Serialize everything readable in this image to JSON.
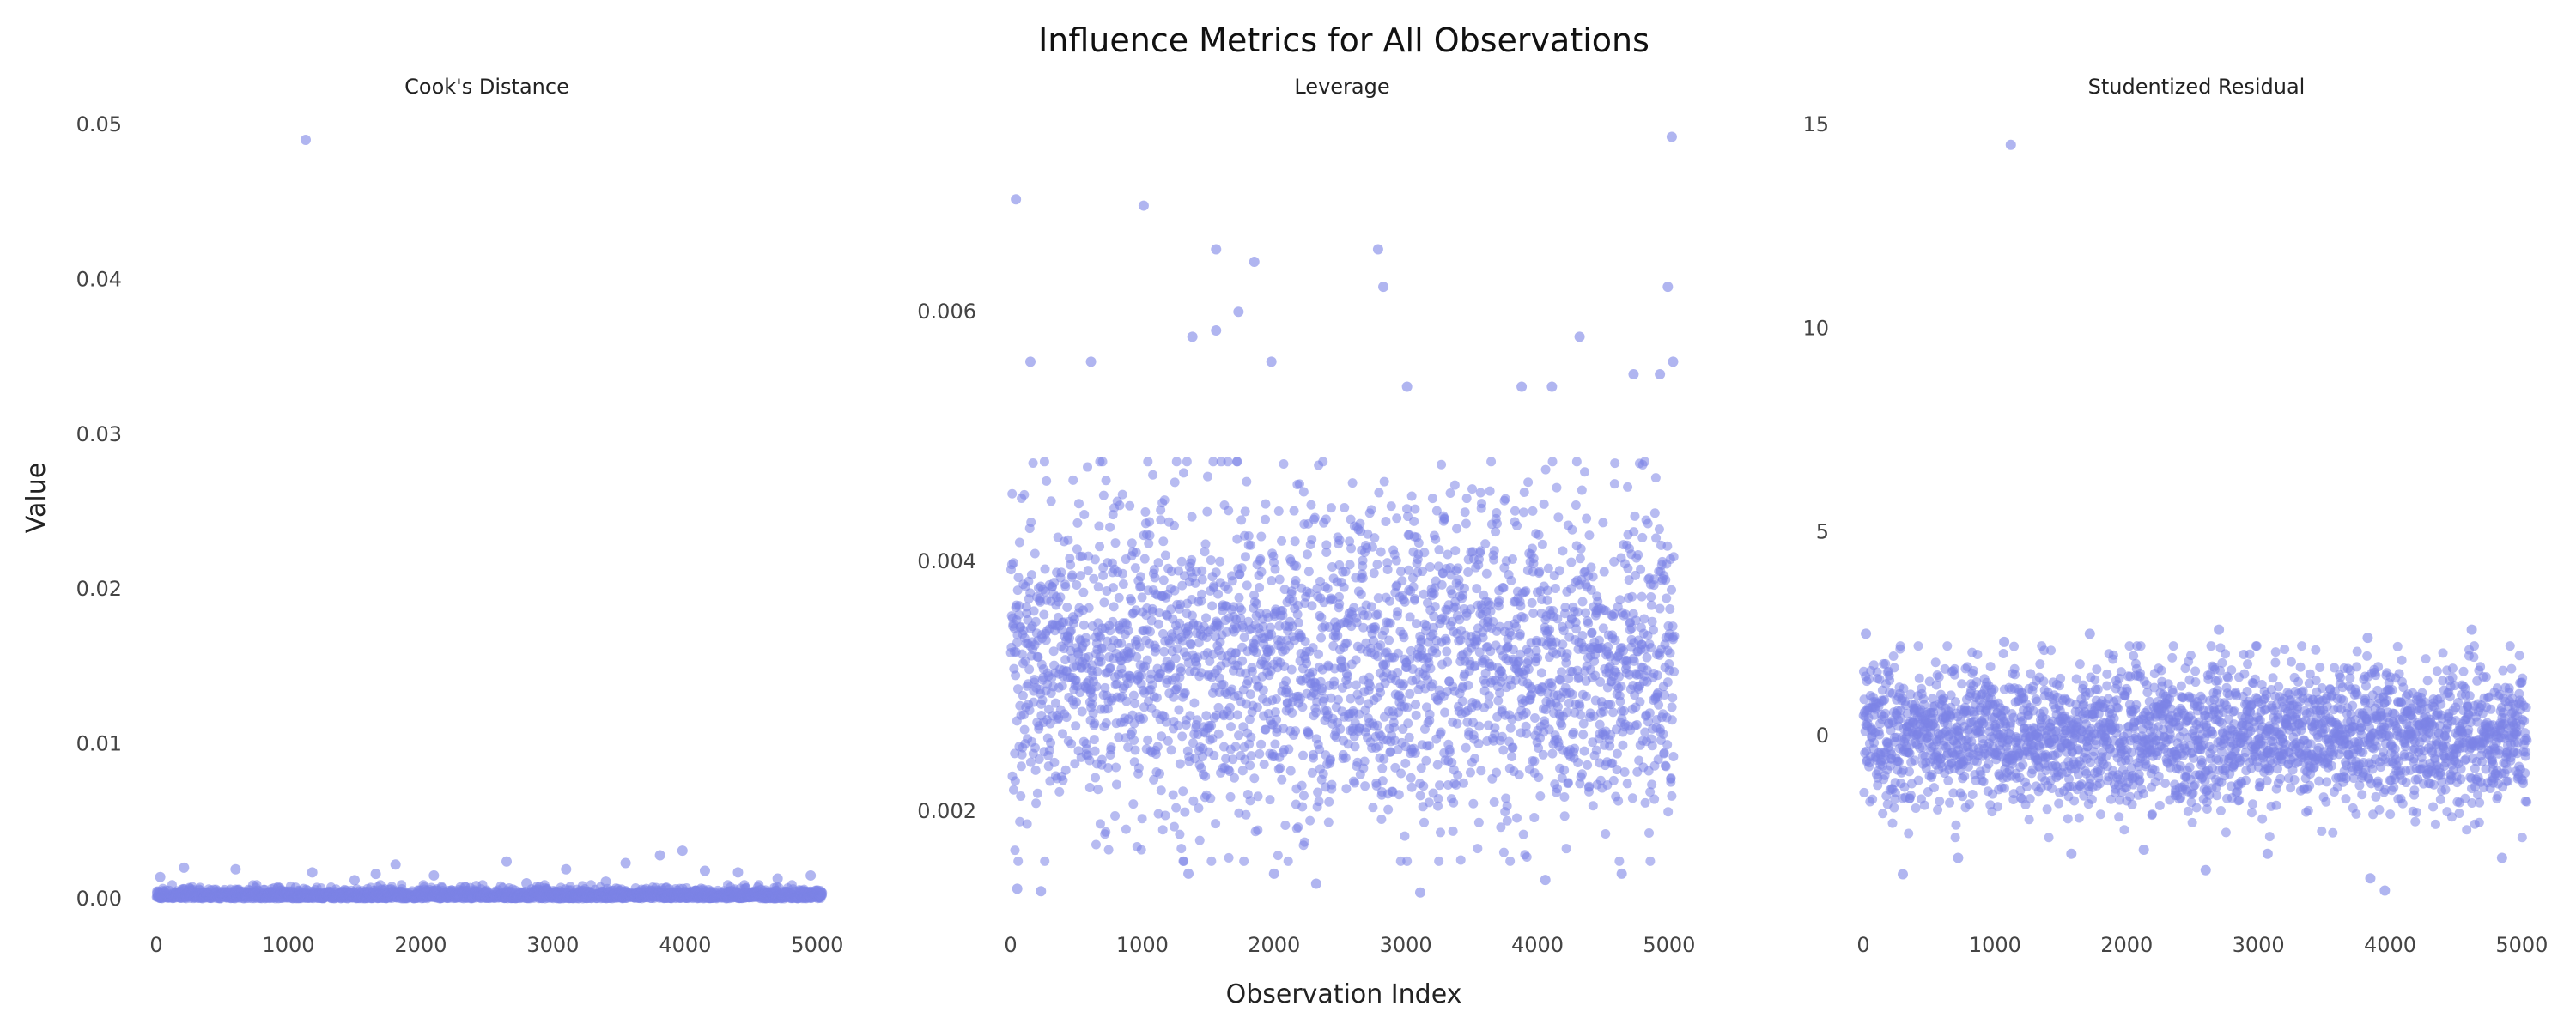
{
  "title": "Influence Metrics for All Observations",
  "xlabel": "Observation Index",
  "ylabel": "Value",
  "point_color": "#7b83e6",
  "chart_data": [
    {
      "type": "scatter",
      "title": "Cook's Distance",
      "xlim": [
        0,
        5040
      ],
      "ylim": [
        0,
        0.05
      ],
      "xticks": [
        0,
        1000,
        2000,
        3000,
        4000,
        5000
      ],
      "yticks": [
        "0.00",
        "0.01",
        "0.02",
        "0.03",
        "0.04",
        "0.05"
      ],
      "grid": false,
      "points": [
        [
          1130,
          0.049
        ],
        [
          3980,
          0.0031
        ],
        [
          3810,
          0.0028
        ],
        [
          2650,
          0.0024
        ],
        [
          3550,
          0.0023
        ],
        [
          1810,
          0.0022
        ],
        [
          210,
          0.002
        ],
        [
          600,
          0.0019
        ],
        [
          3100,
          0.0019
        ],
        [
          4150,
          0.0018
        ],
        [
          1180,
          0.0017
        ],
        [
          4400,
          0.0017
        ],
        [
          1660,
          0.0016
        ],
        [
          2100,
          0.0015
        ],
        [
          4950,
          0.0015
        ],
        [
          30,
          0.0014
        ],
        [
          1500,
          0.0012
        ],
        [
          3400,
          0.0011
        ],
        [
          2800,
          0.001
        ],
        [
          4700,
          0.0013
        ]
      ],
      "bulk": {
        "count": 5040,
        "range": [
          0,
          0.0009
        ],
        "note": "dense band"
      }
    },
    {
      "type": "scatter",
      "title": "Leverage",
      "xlim": [
        0,
        5040
      ],
      "ylim": [
        0.0013,
        0.0075
      ],
      "xticks": [
        0,
        1000,
        2000,
        3000,
        4000,
        5000
      ],
      "yticks": [
        "0.002",
        "0.004",
        "0.006"
      ],
      "grid": false,
      "points": [
        [
          40,
          0.0069
        ],
        [
          5020,
          0.0074
        ],
        [
          1010,
          0.00685
        ],
        [
          2790,
          0.0065
        ],
        [
          1560,
          0.0065
        ],
        [
          1850,
          0.0064
        ],
        [
          2830,
          0.0062
        ],
        [
          4990,
          0.0062
        ],
        [
          1730,
          0.006
        ],
        [
          1380,
          0.0058
        ],
        [
          4320,
          0.0058
        ],
        [
          1560,
          0.00585
        ],
        [
          150,
          0.0056
        ],
        [
          610,
          0.0056
        ],
        [
          1980,
          0.0056
        ],
        [
          5030,
          0.0056
        ],
        [
          3010,
          0.0054
        ],
        [
          3880,
          0.0054
        ],
        [
          4110,
          0.0054
        ],
        [
          4730,
          0.0055
        ],
        [
          4930,
          0.0055
        ],
        [
          50,
          0.00138
        ],
        [
          4060,
          0.00145
        ],
        [
          2320,
          0.00142
        ],
        [
          3110,
          0.00135
        ],
        [
          2000,
          0.0015
        ],
        [
          1350,
          0.0015
        ],
        [
          4640,
          0.0015
        ],
        [
          230,
          0.00136
        ]
      ],
      "bulk": {
        "count": 5040,
        "range": [
          0.0016,
          0.0048
        ],
        "note": "dense cloud"
      }
    },
    {
      "type": "scatter",
      "title": "Studentized Residual",
      "xlim": [
        0,
        5040
      ],
      "ylim": [
        -4,
        15
      ],
      "xticks": [
        0,
        1000,
        2000,
        3000,
        4000,
        5000
      ],
      "yticks": [
        "0",
        "5",
        "10",
        "15"
      ],
      "grid": false,
      "points": [
        [
          1120,
          14.5
        ],
        [
          20,
          2.5
        ],
        [
          2700,
          2.6
        ],
        [
          4620,
          2.6
        ],
        [
          1720,
          2.5
        ],
        [
          1070,
          2.3
        ],
        [
          3830,
          2.4
        ],
        [
          3960,
          -3.8
        ],
        [
          3850,
          -3.5
        ],
        [
          300,
          -3.4
        ],
        [
          2600,
          -3.3
        ],
        [
          720,
          -3.0
        ],
        [
          4850,
          -3.0
        ],
        [
          3070,
          -2.9
        ],
        [
          1580,
          -2.9
        ],
        [
          2130,
          -2.8
        ]
      ],
      "bulk": {
        "count": 5040,
        "range": [
          -2.5,
          2.2
        ],
        "note": "dense band"
      }
    }
  ]
}
